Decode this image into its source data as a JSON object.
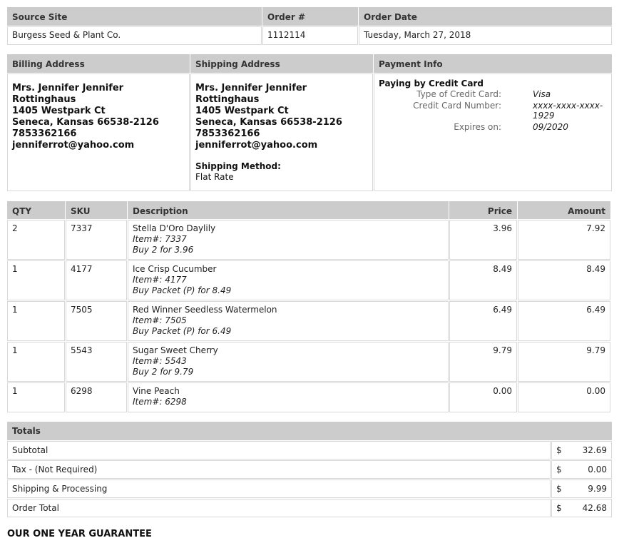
{
  "order": {
    "headers": [
      "Source Site",
      "Order #",
      "Order Date"
    ],
    "values": [
      "Burgess Seed & Plant Co.",
      "1112114",
      "Tuesday, March 27, 2018"
    ]
  },
  "addresses": {
    "billing_header": "Billing Address",
    "shipping_header": "Shipping Address",
    "payment_header": "Payment Info",
    "billing": [
      "Mrs. Jennifer Jennifer",
      "Rottinghaus",
      "1405 Westpark Ct",
      "Seneca, Kansas 66538-2126",
      "7853362166",
      "jenniferrot@yahoo.com"
    ],
    "shipping": [
      "Mrs. Jennifer Jennifer",
      "Rottinghaus",
      "1405 Westpark Ct",
      "Seneca, Kansas 66538-2126",
      "7853362166",
      "jenniferrot@yahoo.com"
    ],
    "shipping_method_label": "Shipping Method:",
    "shipping_method": "Flat Rate",
    "payment": {
      "title": "Paying by Credit Card",
      "type_label": "Type of Credit Card:",
      "type": "Visa",
      "number_label": "Credit Card Number:",
      "number": "xxxx-xxxx-xxxx-1929",
      "expires_label": "Expires on:",
      "expires": "09/2020"
    }
  },
  "items": {
    "headers": [
      "QTY",
      "SKU",
      "Description",
      "Price",
      "Amount"
    ],
    "rows": [
      {
        "qty": "2",
        "sku": "7337",
        "name": "Stella D'Oro Daylily",
        "item": "Item#: 7337",
        "offer": "Buy 2 for 3.96",
        "price": "3.96",
        "amount": "7.92"
      },
      {
        "qty": "1",
        "sku": "4177",
        "name": "Ice Crisp Cucumber",
        "item": "Item#: 4177",
        "offer": "Buy Packet (P) for 8.49",
        "price": "8.49",
        "amount": "8.49"
      },
      {
        "qty": "1",
        "sku": "7505",
        "name": "Red Winner Seedless Watermelon",
        "item": "Item#: 7505",
        "offer": "Buy Packet (P) for 6.49",
        "price": "6.49",
        "amount": "6.49"
      },
      {
        "qty": "1",
        "sku": "5543",
        "name": "Sugar Sweet Cherry",
        "item": "Item#: 5543",
        "offer": "Buy 2 for 9.79",
        "price": "9.79",
        "amount": "9.79"
      },
      {
        "qty": "1",
        "sku": "6298",
        "name": "Vine Peach",
        "item": "Item#: 6298",
        "offer": "",
        "price": "0.00",
        "amount": "0.00"
      }
    ]
  },
  "totals": {
    "header": "Totals",
    "currency": "$",
    "rows": [
      {
        "label": "Subtotal",
        "value": "32.69"
      },
      {
        "label": "Tax - (Not Required)",
        "value": "0.00"
      },
      {
        "label": "Shipping & Processing",
        "value": "9.99"
      },
      {
        "label": "Order Total",
        "value": "42.68"
      }
    ]
  },
  "guarantee": "OUR ONE YEAR GUARANTEE"
}
